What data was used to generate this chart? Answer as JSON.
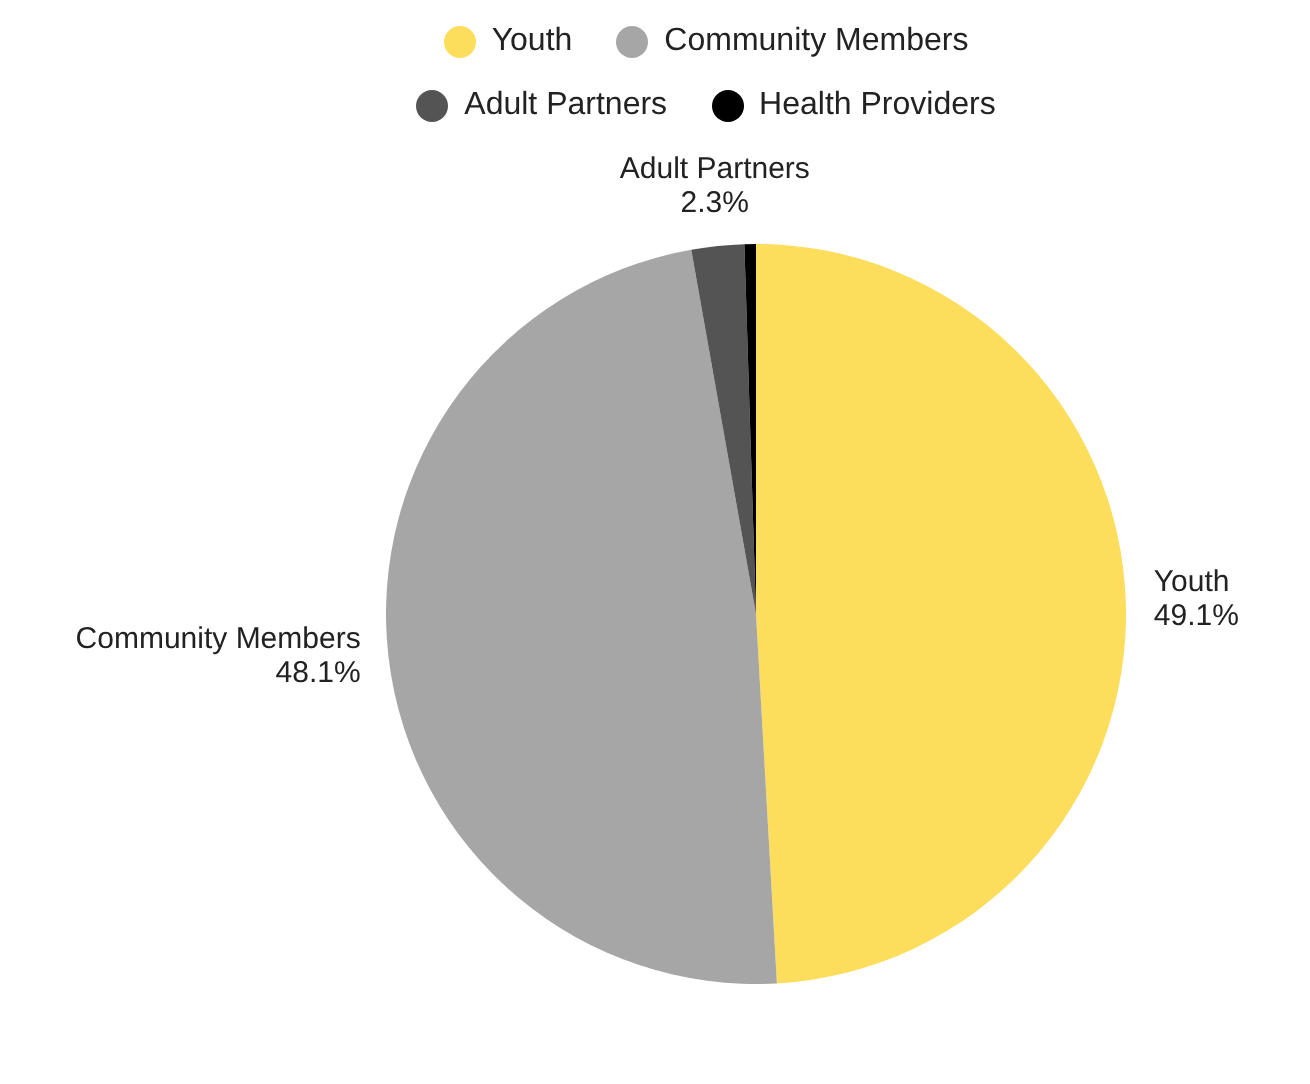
{
  "chart_data": {
    "type": "pie",
    "categories": [
      "Youth",
      "Community Members",
      "Adult Partners",
      "Health Providers"
    ],
    "values": [
      49.1,
      48.1,
      2.3,
      0.5
    ],
    "colors": [
      "#fddd5c",
      "#a6a6a6",
      "#545454",
      "#000000"
    ],
    "value_labels": [
      "49.1%",
      "48.1%",
      "2.3%",
      null
    ],
    "legend": "top"
  }
}
